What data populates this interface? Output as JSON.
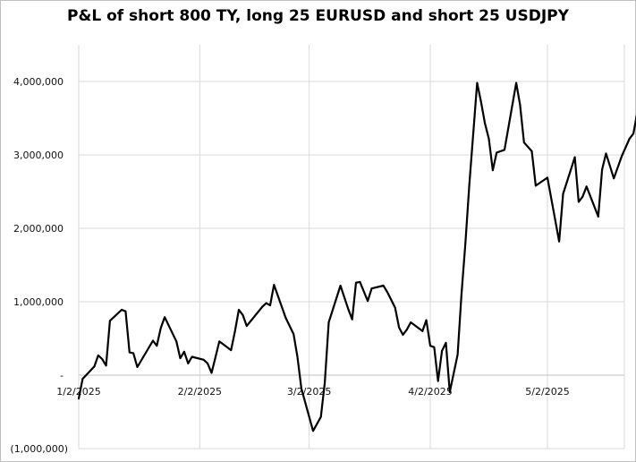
{
  "chart_data": {
    "type": "line",
    "title": "P&L of short 800 TY, long 25 EURUSD and short 25 USDJPY",
    "xlabel": "",
    "ylabel": "",
    "ylim": [
      -1000000,
      4000000
    ],
    "y_ticks": [
      {
        "value": 4000000,
        "label": "4,000,000"
      },
      {
        "value": 3000000,
        "label": "3,000,000"
      },
      {
        "value": 2000000,
        "label": "2,000,000"
      },
      {
        "value": 1000000,
        "label": "1,000,000"
      },
      {
        "value": 0,
        "label": "-"
      },
      {
        "value": -1000000,
        "label": "(1,000,000)"
      }
    ],
    "x_ticks": [
      {
        "date": "2025-01-02",
        "label": "1/2/2025"
      },
      {
        "date": "2025-02-02",
        "label": "2/2/2025"
      },
      {
        "date": "2025-03-02",
        "label": "3/2/2025"
      },
      {
        "date": "2025-04-02",
        "label": "4/2/2025"
      },
      {
        "date": "2025-05-02",
        "label": "5/2/2025"
      }
    ],
    "x_range": [
      "2025-01-02",
      "2025-05-30"
    ],
    "grid": {
      "vertical": true,
      "horizontal": true
    },
    "line_color": "#000000",
    "grid_color": "#d9d9d9",
    "series": [
      {
        "points": [
          {
            "x": "2025-01-02",
            "y": -320000
          },
          {
            "x": "2025-01-03",
            "y": -50000
          },
          {
            "x": "2025-01-06",
            "y": 120000
          },
          {
            "x": "2025-01-07",
            "y": 270000
          },
          {
            "x": "2025-01-08",
            "y": 220000
          },
          {
            "x": "2025-01-09",
            "y": 130000
          },
          {
            "x": "2025-01-10",
            "y": 740000
          },
          {
            "x": "2025-01-13",
            "y": 890000
          },
          {
            "x": "2025-01-14",
            "y": 870000
          },
          {
            "x": "2025-01-15",
            "y": 310000
          },
          {
            "x": "2025-01-16",
            "y": 300000
          },
          {
            "x": "2025-01-17",
            "y": 110000
          },
          {
            "x": "2025-01-21",
            "y": 470000
          },
          {
            "x": "2025-01-22",
            "y": 400000
          },
          {
            "x": "2025-01-23",
            "y": 640000
          },
          {
            "x": "2025-01-24",
            "y": 790000
          },
          {
            "x": "2025-01-27",
            "y": 460000
          },
          {
            "x": "2025-01-28",
            "y": 230000
          },
          {
            "x": "2025-01-29",
            "y": 320000
          },
          {
            "x": "2025-01-30",
            "y": 160000
          },
          {
            "x": "2025-01-31",
            "y": 250000
          },
          {
            "x": "2025-02-03",
            "y": 210000
          },
          {
            "x": "2025-02-04",
            "y": 160000
          },
          {
            "x": "2025-02-05",
            "y": 30000
          },
          {
            "x": "2025-02-06",
            "y": 240000
          },
          {
            "x": "2025-02-07",
            "y": 460000
          },
          {
            "x": "2025-02-10",
            "y": 340000
          },
          {
            "x": "2025-02-11",
            "y": 600000
          },
          {
            "x": "2025-02-12",
            "y": 890000
          },
          {
            "x": "2025-02-13",
            "y": 820000
          },
          {
            "x": "2025-02-14",
            "y": 670000
          },
          {
            "x": "2025-02-18",
            "y": 930000
          },
          {
            "x": "2025-02-19",
            "y": 980000
          },
          {
            "x": "2025-02-20",
            "y": 950000
          },
          {
            "x": "2025-02-21",
            "y": 1230000
          },
          {
            "x": "2025-02-24",
            "y": 780000
          },
          {
            "x": "2025-02-26",
            "y": 560000
          },
          {
            "x": "2025-02-27",
            "y": 250000
          },
          {
            "x": "2025-02-28",
            "y": -180000
          },
          {
            "x": "2025-03-03",
            "y": -760000
          },
          {
            "x": "2025-03-05",
            "y": -570000
          },
          {
            "x": "2025-03-06",
            "y": -100000
          },
          {
            "x": "2025-03-07",
            "y": 720000
          },
          {
            "x": "2025-03-10",
            "y": 1220000
          },
          {
            "x": "2025-03-12",
            "y": 900000
          },
          {
            "x": "2025-03-13",
            "y": 760000
          },
          {
            "x": "2025-03-14",
            "y": 1260000
          },
          {
            "x": "2025-03-15",
            "y": 1270000
          },
          {
            "x": "2025-03-17",
            "y": 1010000
          },
          {
            "x": "2025-03-18",
            "y": 1180000
          },
          {
            "x": "2025-03-21",
            "y": 1220000
          },
          {
            "x": "2025-03-22",
            "y": 1130000
          },
          {
            "x": "2025-03-24",
            "y": 920000
          },
          {
            "x": "2025-03-25",
            "y": 650000
          },
          {
            "x": "2025-03-26",
            "y": 550000
          },
          {
            "x": "2025-03-27",
            "y": 620000
          },
          {
            "x": "2025-03-28",
            "y": 720000
          },
          {
            "x": "2025-03-31",
            "y": 600000
          },
          {
            "x": "2025-04-01",
            "y": 750000
          },
          {
            "x": "2025-04-02",
            "y": 400000
          },
          {
            "x": "2025-04-03",
            "y": 380000
          },
          {
            "x": "2025-04-04",
            "y": -80000
          },
          {
            "x": "2025-04-05",
            "y": 330000
          },
          {
            "x": "2025-04-06",
            "y": 440000
          },
          {
            "x": "2025-04-07",
            "y": -230000
          },
          {
            "x": "2025-04-09",
            "y": 280000
          },
          {
            "x": "2025-04-10",
            "y": 1100000
          },
          {
            "x": "2025-04-11",
            "y": 1800000
          },
          {
            "x": "2025-04-12",
            "y": 2600000
          },
          {
            "x": "2025-04-14",
            "y": 3980000
          },
          {
            "x": "2025-04-15",
            "y": 3720000
          },
          {
            "x": "2025-04-16",
            "y": 3430000
          },
          {
            "x": "2025-04-17",
            "y": 3220000
          },
          {
            "x": "2025-04-18",
            "y": 2790000
          },
          {
            "x": "2025-04-19",
            "y": 3030000
          },
          {
            "x": "2025-04-21",
            "y": 3070000
          },
          {
            "x": "2025-04-24",
            "y": 3980000
          },
          {
            "x": "2025-04-25",
            "y": 3680000
          },
          {
            "x": "2025-04-26",
            "y": 3170000
          },
          {
            "x": "2025-04-28",
            "y": 3050000
          },
          {
            "x": "2025-04-29",
            "y": 2580000
          },
          {
            "x": "2025-05-02",
            "y": 2690000
          },
          {
            "x": "2025-05-05",
            "y": 1820000
          },
          {
            "x": "2025-05-06",
            "y": 2470000
          },
          {
            "x": "2025-05-08",
            "y": 2800000
          },
          {
            "x": "2025-05-09",
            "y": 2970000
          },
          {
            "x": "2025-05-10",
            "y": 2360000
          },
          {
            "x": "2025-05-11",
            "y": 2430000
          },
          {
            "x": "2025-05-12",
            "y": 2570000
          },
          {
            "x": "2025-05-15",
            "y": 2160000
          },
          {
            "x": "2025-05-16",
            "y": 2800000
          },
          {
            "x": "2025-05-17",
            "y": 3020000
          },
          {
            "x": "2025-05-19",
            "y": 2680000
          },
          {
            "x": "2025-05-21",
            "y": 2980000
          },
          {
            "x": "2025-05-23",
            "y": 3220000
          },
          {
            "x": "2025-05-24",
            "y": 3290000
          },
          {
            "x": "2025-05-26",
            "y": 3870000
          }
        ]
      }
    ]
  }
}
